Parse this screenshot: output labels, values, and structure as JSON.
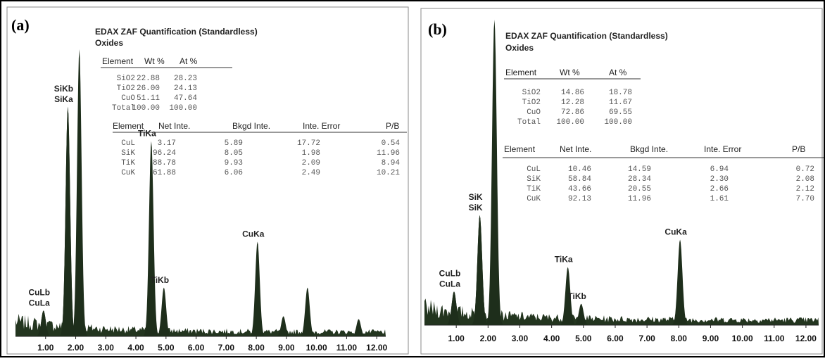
{
  "panels": [
    {
      "label": "(a)",
      "title": "EDAX ZAF Quantification (Standardless)",
      "subtitle": "Oxides",
      "table1": {
        "header": [
          "Element",
          "Wt %",
          "At %"
        ],
        "rows": [
          [
            "SiO2",
            "22.88",
            "28.23"
          ],
          [
            "TiO2",
            "26.00",
            "24.13"
          ],
          [
            "CuO",
            "51.11",
            "47.64"
          ],
          [
            "Total",
            "100.00",
            "100.00"
          ]
        ]
      },
      "table2": {
        "header": [
          "Element",
          "Net Inte.",
          "Bkgd Inte.",
          "Inte. Error",
          "P/B"
        ],
        "rows": [
          [
            "CuL",
            "3.17",
            "5.89",
            "17.72",
            "0.54"
          ],
          [
            "SiK",
            "96.24",
            "8.05",
            "1.98",
            "11.96"
          ],
          [
            "TiK",
            "88.78",
            "9.93",
            "2.09",
            "8.94"
          ],
          [
            "CuK",
            "61.88",
            "6.06",
            "2.49",
            "10.21"
          ]
        ]
      },
      "spectrum": {
        "type": "spectrum",
        "xlim": [
          0,
          12.3
        ],
        "xticks": [
          {
            "value": 1,
            "label": "1.00"
          },
          {
            "value": 2,
            "label": "2.00"
          },
          {
            "value": 3,
            "label": "3.00"
          },
          {
            "value": 4,
            "label": "4.00"
          },
          {
            "value": 5,
            "label": "5.00"
          },
          {
            "value": 6,
            "label": "6.00"
          },
          {
            "value": 7,
            "label": "7.00"
          },
          {
            "value": 8,
            "label": "8.00"
          },
          {
            "value": 9,
            "label": "9.00"
          },
          {
            "value": 10,
            "label": "10.00"
          },
          {
            "value": 11,
            "label": "11.00"
          },
          {
            "value": 12,
            "label": "12.00"
          }
        ],
        "peaks": [
          {
            "label": "CuLb",
            "x": 0.93,
            "height": 9
          },
          {
            "label": "CuLa",
            "x": 0.93,
            "height": 9
          },
          {
            "label": "SiKb",
            "x": 1.74,
            "height": 80
          },
          {
            "label": "SiKa",
            "x": 1.74,
            "height": 80
          },
          {
            "label": null,
            "x": 2.12,
            "height": 100
          },
          {
            "label": "TiKa",
            "x": 4.51,
            "height": 68
          },
          {
            "label": "TiKb",
            "x": 4.93,
            "height": 17
          },
          {
            "label": "CuKa",
            "x": 8.04,
            "height": 33
          },
          {
            "label": null,
            "x": 8.9,
            "height": 7
          },
          {
            "label": null,
            "x": 9.7,
            "height": 17
          },
          {
            "label": null,
            "x": 11.4,
            "height": 6
          }
        ]
      }
    },
    {
      "label": "(b)",
      "title": "EDAX ZAF Quantification (Standardless)",
      "subtitle": "Oxides",
      "table1": {
        "header": [
          "Element",
          "Wt %",
          "At %"
        ],
        "rows": [
          [
            "SiO2",
            "14.86",
            "18.78"
          ],
          [
            "TiO2",
            "12.28",
            "11.67"
          ],
          [
            "CuO",
            "72.86",
            "69.55"
          ],
          [
            "Total",
            "100.00",
            "100.00"
          ]
        ]
      },
      "table2": {
        "header": [
          "Element",
          "Net Inte.",
          "Bkgd Inte.",
          "Inte. Error",
          "P/B"
        ],
        "rows": [
          [
            "CuL",
            "10.46",
            "14.59",
            "6.94",
            "0.72"
          ],
          [
            "SiK",
            "58.84",
            "28.34",
            "2.30",
            "2.08"
          ],
          [
            "TiK",
            "43.66",
            "20.55",
            "2.66",
            "2.12"
          ],
          [
            "CuK",
            "92.13",
            "11.96",
            "1.61",
            "7.70"
          ]
        ]
      },
      "spectrum": {
        "type": "spectrum",
        "xlim": [
          0,
          12.4
        ],
        "xticks": [
          {
            "value": 1,
            "label": "1.00"
          },
          {
            "value": 2,
            "label": "2.00"
          },
          {
            "value": 3,
            "label": "3.00"
          },
          {
            "value": 4,
            "label": "4.00"
          },
          {
            "value": 5,
            "label": "5.00"
          },
          {
            "value": 6,
            "label": "6.00"
          },
          {
            "value": 7,
            "label": "7.00"
          },
          {
            "value": 8,
            "label": "8.00"
          },
          {
            "value": 9,
            "label": "9.00"
          },
          {
            "value": 10,
            "label": "10.00"
          },
          {
            "value": 11,
            "label": "11.00"
          },
          {
            "value": 12,
            "label": "12.00"
          }
        ],
        "peaks": [
          {
            "label": "CuLb",
            "x": 0.93,
            "height": 11
          },
          {
            "label": "CuLa",
            "x": 0.93,
            "height": 11
          },
          {
            "label": "SiK",
            "x": 1.74,
            "height": 36
          },
          {
            "label": "SiK",
            "x": 1.74,
            "height": 36
          },
          {
            "label": null,
            "x": 2.2,
            "height": 100
          },
          {
            "label": "TiKa",
            "x": 4.51,
            "height": 19
          },
          {
            "label": "TiKb",
            "x": 4.93,
            "height": 7
          },
          {
            "label": "CuKa",
            "x": 8.04,
            "height": 28
          }
        ]
      }
    }
  ]
}
